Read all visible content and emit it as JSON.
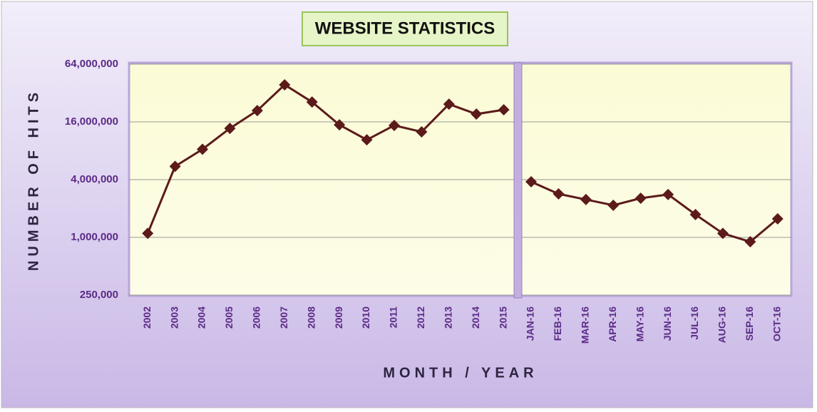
{
  "chart_data": {
    "type": "line",
    "title": "WEBSITE STATISTICS",
    "x_label": "MONTH / YEAR",
    "y_label": "NUMBER OF HITS",
    "categories": [
      "2002",
      "2003",
      "2004",
      "2005",
      "2006",
      "2007",
      "2008",
      "2009",
      "2010",
      "2011",
      "2012",
      "2013",
      "2014",
      "2015",
      "JAN-16",
      "FEB-16",
      "MAR-16",
      "APR-16",
      "MAY-16",
      "JUN-16",
      "JUL-16",
      "AUG-16",
      "SEP-16",
      "OCT-16"
    ],
    "series": [
      {
        "color": "#5c1a1a",
        "values": [
          1100000,
          5500000,
          8300000,
          13700000,
          21000000,
          39000000,
          25800000,
          14900000,
          10400000,
          14700000,
          12600000,
          24500000,
          19300000,
          21400000,
          null,
          null,
          null,
          null,
          null,
          null,
          null,
          null,
          null,
          null
        ]
      },
      {
        "color": "#5c1a1a",
        "values": [
          null,
          null,
          null,
          null,
          null,
          null,
          null,
          null,
          null,
          null,
          null,
          null,
          null,
          null,
          3800000,
          2840000,
          2480000,
          2160000,
          2560000,
          2800000,
          1730000,
          1100000,
          900000,
          1560000
        ]
      }
    ],
    "log_scale": true,
    "grid": true,
    "ylim": [
      250000,
      64000000
    ],
    "yticks": [
      {
        "value": 250000,
        "label": "250,000"
      },
      {
        "value": 1000000,
        "label": "1,000,000"
      },
      {
        "value": 4000000,
        "label": "4,000,000"
      },
      {
        "value": 16000000,
        "label": "16,000,000"
      },
      {
        "value": 64000000,
        "label": "64,000,000"
      }
    ]
  }
}
